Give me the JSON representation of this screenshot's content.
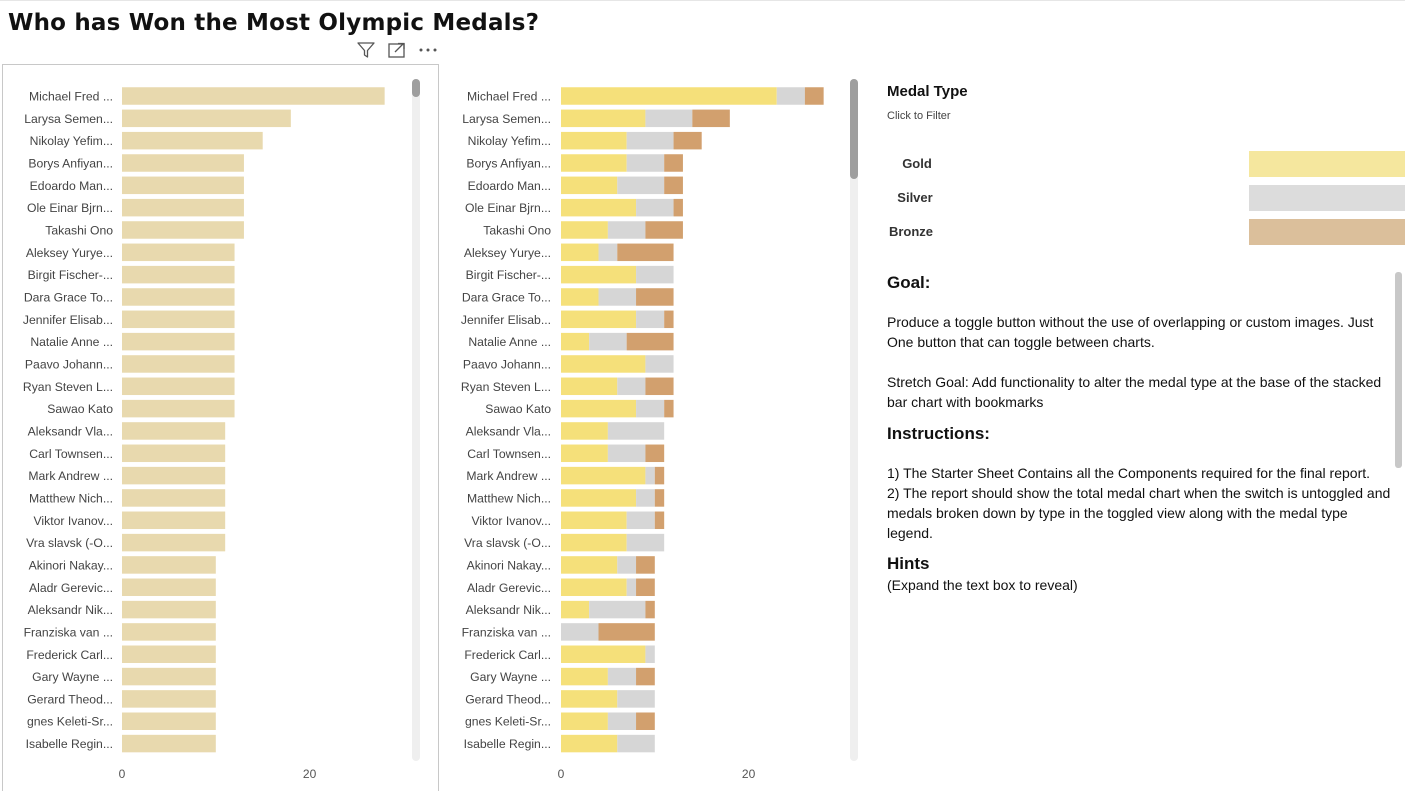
{
  "title": "Who has Won the Most Olympic Medals?",
  "visual_header_icons": [
    "filter-icon",
    "focus-mode-icon",
    "more-options-icon"
  ],
  "legend": {
    "title": "Medal Type",
    "subtitle": "Click to Filter",
    "items": [
      {
        "label": "Gold",
        "color": "#f5e79e"
      },
      {
        "label": "Silver",
        "color": "#dcdcdc"
      },
      {
        "label": "Bronze",
        "color": "#dbbf9b"
      }
    ]
  },
  "textbox": {
    "goal_heading": "Goal:",
    "goal_p1": "Produce a toggle button without the use of overlapping or custom images. Just One button that can toggle between charts.",
    "goal_p2": "Stretch Goal: Add functionality to alter the medal type at the base of the stacked bar chart with bookmarks",
    "instructions_heading": "Instructions:",
    "instruction_1": "1) The Starter Sheet Contains all the Components required for the final report.",
    "instruction_2": "2) The report should show the total medal chart when the switch is untoggled and medals broken down by type in the toggled view along with the medal type legend.",
    "hints_heading": "Hints",
    "hints_text": "(Expand the text box to reveal)"
  },
  "chart_data": [
    {
      "type": "bar",
      "orientation": "horizontal",
      "title": "",
      "xlabel": "",
      "ylabel": "",
      "xlim": [
        0,
        30
      ],
      "xticks": [
        0,
        20
      ],
      "bar_color": "#e8d9ae",
      "categories": [
        "Michael Fred ...",
        "Larysa Semen...",
        "Nikolay Yefim...",
        "Borys Anfiyan...",
        "Edoardo Man...",
        "Ole Einar Bjrn...",
        "Takashi Ono",
        "Aleksey Yurye...",
        "Birgit Fischer-...",
        "Dara Grace To...",
        "Jennifer Elisab...",
        "Natalie Anne ...",
        "Paavo Johann...",
        "Ryan Steven L...",
        "Sawao Kato",
        "Aleksandr Vla...",
        "Carl Townsen...",
        "Mark Andrew ...",
        "Matthew Nich...",
        "Viktor Ivanov...",
        "Vra slavsk (-O...",
        "Akinori Nakay...",
        "Aladr Gerevic...",
        "Aleksandr Nik...",
        "Franziska van ...",
        "Frederick Carl...",
        "Gary Wayne ...",
        "Gerard Theod...",
        "gnes Keleti-Sr...",
        "Isabelle Regin..."
      ],
      "values": [
        28,
        18,
        15,
        13,
        13,
        13,
        13,
        12,
        12,
        12,
        12,
        12,
        12,
        12,
        12,
        11,
        11,
        11,
        11,
        11,
        11,
        10,
        10,
        10,
        10,
        10,
        10,
        10,
        10,
        10
      ]
    },
    {
      "type": "bar",
      "orientation": "horizontal",
      "stacked": true,
      "title": "",
      "xlabel": "",
      "ylabel": "",
      "xlim": [
        0,
        30
      ],
      "xticks": [
        0,
        20
      ],
      "categories": [
        "Michael Fred ...",
        "Larysa Semen...",
        "Nikolay Yefim...",
        "Borys Anfiyan...",
        "Edoardo Man...",
        "Ole Einar Bjrn...",
        "Takashi Ono",
        "Aleksey Yurye...",
        "Birgit Fischer-...",
        "Dara Grace To...",
        "Jennifer Elisab...",
        "Natalie Anne ...",
        "Paavo Johann...",
        "Ryan Steven L...",
        "Sawao Kato",
        "Aleksandr Vla...",
        "Carl Townsen...",
        "Mark Andrew ...",
        "Matthew Nich...",
        "Viktor Ivanov...",
        "Vra slavsk (-O...",
        "Akinori Nakay...",
        "Aladr Gerevic...",
        "Aleksandr Nik...",
        "Franziska van ...",
        "Frederick Carl...",
        "Gary Wayne ...",
        "Gerard Theod...",
        "gnes Keleti-Sr...",
        "Isabelle Regin..."
      ],
      "series": [
        {
          "name": "Gold",
          "color": "#f5e07a",
          "values": [
            23,
            9,
            7,
            7,
            6,
            8,
            5,
            4,
            8,
            4,
            8,
            3,
            9,
            6,
            8,
            5,
            5,
            9,
            8,
            7,
            7,
            6,
            7,
            3,
            0,
            9,
            5,
            6,
            5,
            6
          ]
        },
        {
          "name": "Silver",
          "color": "#d6d6d6",
          "values": [
            3,
            5,
            5,
            4,
            5,
            4,
            4,
            2,
            4,
            4,
            3,
            4,
            3,
            3,
            3,
            6,
            4,
            1,
            2,
            3,
            4,
            2,
            1,
            6,
            4,
            1,
            3,
            4,
            3,
            4
          ]
        },
        {
          "name": "Bronze",
          "color": "#d2a06e",
          "values": [
            2,
            4,
            3,
            2,
            2,
            1,
            4,
            6,
            0,
            4,
            1,
            5,
            0,
            3,
            1,
            0,
            2,
            1,
            1,
            1,
            0,
            2,
            2,
            1,
            6,
            0,
            2,
            0,
            2,
            0
          ]
        }
      ]
    }
  ]
}
